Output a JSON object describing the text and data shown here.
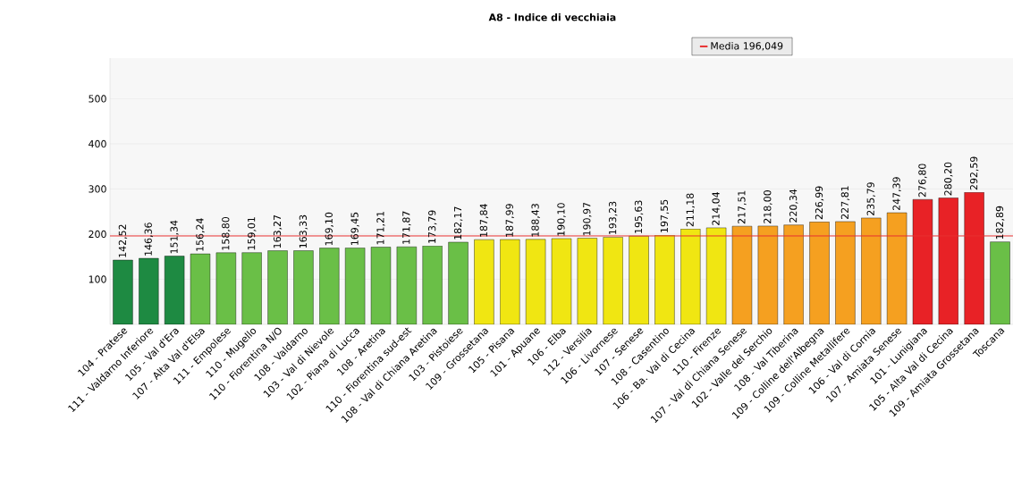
{
  "chart_data": {
    "type": "bar",
    "title": "A8 - Indice di vecchiaia",
    "categories": [
      "104 - Pratese",
      "111 - Valdarno Inferiore",
      "105 - Val d'Era",
      "107 - Alta Val d'Elsa",
      "111 - Empolese",
      "110 - Mugello",
      "110 - Fiorentina N/O",
      "108 - Valdarno",
      "103 - Val di Nievole",
      "102 - Piana di Lucca",
      "108 - Aretina",
      "110 - Fiorentina sud-est",
      "108 - Val di Chiana Aretina",
      "103 - Pistoiese",
      "109 - Grossetana",
      "105 - Pisana",
      "101 - Apuane",
      "106 - Elba",
      "112 - Versilia",
      "106 - Livornese",
      "107 - Senese",
      "108 - Casentino",
      "106 - Ba. Val di Cecina",
      "110 - Firenze",
      "107 - Val di Chiana Senese",
      "102 - Valle del Serchio",
      "108 - Val Tiberina",
      "109 - Colline dell'Albegna",
      "109 - Colline Metallifere",
      "106 - Val di Cornia",
      "107 - Amiata Senese",
      "101 - Lunigiana",
      "105 - Alta Val di Cecina",
      "109 - Amiata Grossetana",
      "Toscana"
    ],
    "values": [
      142.52,
      146.36,
      151.34,
      156.24,
      158.8,
      159.01,
      163.27,
      163.33,
      169.1,
      169.45,
      171.21,
      171.87,
      173.79,
      182.17,
      187.84,
      187.99,
      188.43,
      190.1,
      190.97,
      193.23,
      195.63,
      197.55,
      211.18,
      214.04,
      217.51,
      218.0,
      220.34,
      226.99,
      227.81,
      235.79,
      247.39,
      276.8,
      280.2,
      292.59,
      182.89
    ],
    "value_labels": [
      "142,52",
      "146,36",
      "151,34",
      "156,24",
      "158,80",
      "159,01",
      "163,27",
      "163,33",
      "169,10",
      "169,45",
      "171,21",
      "171,87",
      "173,79",
      "182,17",
      "187,84",
      "187,99",
      "188,43",
      "190,10",
      "190,97",
      "193,23",
      "195,63",
      "197,55",
      "211,18",
      "214,04",
      "217,51",
      "218,00",
      "220,34",
      "226,99",
      "227,81",
      "235,79",
      "247,39",
      "276,80",
      "280,20",
      "292,59",
      "182,89"
    ],
    "colors": [
      "#1e8a42",
      "#1e8a42",
      "#1e8a42",
      "#6abf47",
      "#6abf47",
      "#6abf47",
      "#6abf47",
      "#6abf47",
      "#6abf47",
      "#6abf47",
      "#6abf47",
      "#6abf47",
      "#6abf47",
      "#6abf47",
      "#f0e612",
      "#f0e612",
      "#f0e612",
      "#f0e612",
      "#f0e612",
      "#f0e612",
      "#f0e612",
      "#f0e612",
      "#f0e612",
      "#f0e612",
      "#f5a020",
      "#f5a020",
      "#f5a020",
      "#f5a020",
      "#f5a020",
      "#f5a020",
      "#f5a020",
      "#e82226",
      "#e82226",
      "#e82226",
      "#6abf47"
    ],
    "ylim": [
      0,
      590
    ],
    "yticks": [
      100,
      200,
      300,
      400,
      500
    ],
    "grid": "y",
    "legend": "top",
    "ref_lines": [
      {
        "axis": "y",
        "value": 196.049,
        "label": "Media 196,049",
        "color": "#e83030"
      }
    ]
  }
}
